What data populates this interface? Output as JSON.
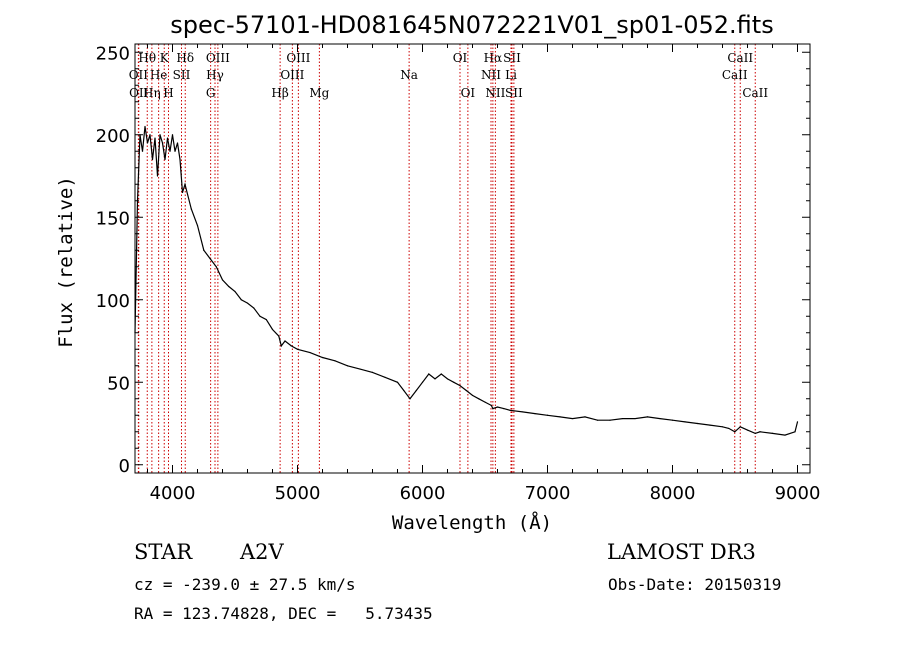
{
  "chart_data": {
    "type": "line",
    "title": "spec-57101-HD081645N072221V01_sp01-052.fits",
    "xlabel": "Wavelength (Å)",
    "ylabel": "Flux (relative)",
    "xlim": [
      3700,
      9100
    ],
    "ylim": [
      -5,
      255
    ],
    "xticks": [
      4000,
      5000,
      6000,
      7000,
      8000,
      9000
    ],
    "yticks": [
      0,
      50,
      100,
      150,
      200,
      250
    ],
    "grid": false,
    "series": [
      {
        "name": "flux",
        "x": [
          3700,
          3720,
          3740,
          3760,
          3780,
          3800,
          3820,
          3840,
          3860,
          3880,
          3900,
          3920,
          3940,
          3960,
          3980,
          4000,
          4020,
          4040,
          4060,
          4080,
          4100,
          4150,
          4200,
          4250,
          4300,
          4350,
          4400,
          4450,
          4500,
          4550,
          4600,
          4650,
          4700,
          4750,
          4800,
          4850,
          4870,
          4900,
          4950,
          5000,
          5100,
          5200,
          5300,
          5400,
          5500,
          5600,
          5700,
          5800,
          5850,
          5900,
          5950,
          6000,
          6050,
          6100,
          6150,
          6200,
          6250,
          6300,
          6350,
          6400,
          6450,
          6500,
          6550,
          6563,
          6600,
          6650,
          6700,
          6800,
          6900,
          7000,
          7100,
          7200,
          7300,
          7400,
          7500,
          7600,
          7700,
          7800,
          7900,
          8000,
          8100,
          8200,
          8300,
          8400,
          8450,
          8498,
          8542,
          8600,
          8662,
          8700,
          8800,
          8900,
          8980,
          9000
        ],
        "y": [
          80,
          160,
          200,
          190,
          205,
          195,
          200,
          185,
          198,
          175,
          200,
          195,
          185,
          198,
          190,
          200,
          190,
          195,
          185,
          165,
          170,
          155,
          145,
          130,
          125,
          120,
          112,
          108,
          105,
          100,
          98,
          95,
          90,
          88,
          82,
          78,
          72,
          75,
          72,
          70,
          68,
          65,
          63,
          60,
          58,
          56,
          53,
          50,
          45,
          40,
          45,
          50,
          55,
          52,
          55,
          52,
          50,
          48,
          45,
          42,
          40,
          38,
          36,
          34,
          35,
          34,
          33,
          32,
          31,
          30,
          29,
          28,
          29,
          27,
          27,
          28,
          28,
          29,
          28,
          27,
          26,
          25,
          24,
          23,
          22,
          20,
          23,
          21,
          19,
          20,
          19,
          18,
          20,
          26
        ]
      }
    ],
    "spectral_lines": [
      {
        "label": "Hθ",
        "wavelength": 3798,
        "row": 1
      },
      {
        "label": "OII",
        "wavelength": 3727,
        "row": 2
      },
      {
        "label": "OII",
        "wavelength": 3730,
        "row": 3
      },
      {
        "label": "K",
        "wavelength": 3934,
        "row": 1
      },
      {
        "label": "He",
        "wavelength": 3889,
        "row": 2
      },
      {
        "label": "Hη",
        "wavelength": 3835,
        "row": 3
      },
      {
        "label": "Hδ",
        "wavelength": 4102,
        "row": 1
      },
      {
        "label": "SII",
        "wavelength": 4072,
        "row": 2
      },
      {
        "label": "H",
        "wavelength": 3968,
        "row": 3
      },
      {
        "label": "OIII",
        "wavelength": 4363,
        "row": 1
      },
      {
        "label": "Hγ",
        "wavelength": 4340,
        "row": 2
      },
      {
        "label": "G",
        "wavelength": 4305,
        "row": 3
      },
      {
        "label": "OIII",
        "wavelength": 5007,
        "row": 1
      },
      {
        "label": "OIII",
        "wavelength": 4959,
        "row": 2
      },
      {
        "label": "Hβ",
        "wavelength": 4861,
        "row": 3
      },
      {
        "label": "Mg",
        "wavelength": 5175,
        "row": 3
      },
      {
        "label": "Na",
        "wavelength": 5893,
        "row": 2
      },
      {
        "label": "OI",
        "wavelength": 6300,
        "row": 1
      },
      {
        "label": "OI",
        "wavelength": 6363,
        "row": 3
      },
      {
        "label": "Hα",
        "wavelength": 6563,
        "row": 1
      },
      {
        "label": "NII",
        "wavelength": 6548,
        "row": 2
      },
      {
        "label": "NII",
        "wavelength": 6583,
        "row": 3
      },
      {
        "label": "SII",
        "wavelength": 6716,
        "row": 1
      },
      {
        "label": "Li",
        "wavelength": 6708,
        "row": 2
      },
      {
        "label": "SII",
        "wavelength": 6731,
        "row": 3
      },
      {
        "label": "CaII",
        "wavelength": 8542,
        "row": 1
      },
      {
        "label": "CaII",
        "wavelength": 8498,
        "row": 2
      },
      {
        "label": "CaII",
        "wavelength": 8662,
        "row": 3
      }
    ],
    "line_color": "#000000",
    "marker_color": "#cc0000"
  },
  "info": {
    "object_class": "STAR",
    "subclass": "A2V",
    "survey": "LAMOST DR3",
    "redshift": "cz = -239.0 ± 27.5 km/s",
    "obs_date": "Obs-Date: 20150319",
    "coords": "RA = 123.74828, DEC =   5.73435"
  }
}
